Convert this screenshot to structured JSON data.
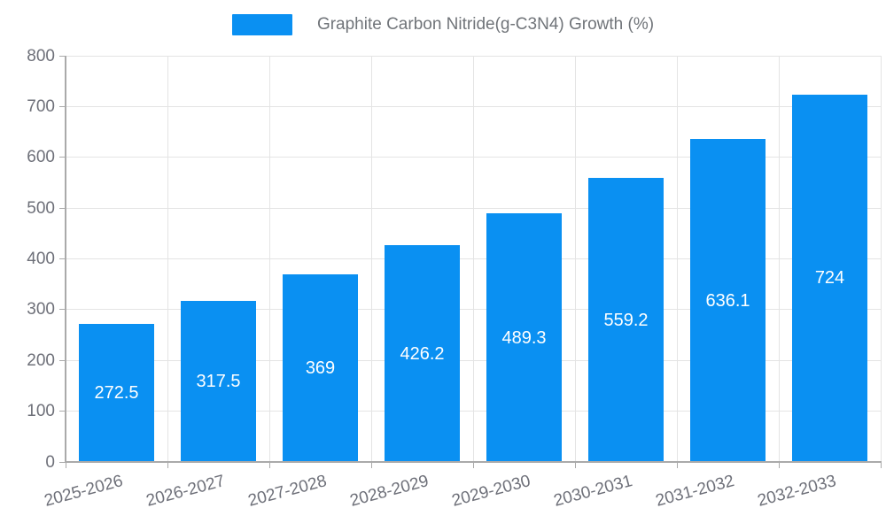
{
  "legend": {
    "label": "Graphite Carbon Nitride(g-C3N4) Growth (%)"
  },
  "chart_data": {
    "type": "bar",
    "title": "Graphite Carbon Nitride(g-C3N4) Growth (%)",
    "series_name": "Graphite Carbon Nitride(g-C3N4) Growth (%)",
    "categories": [
      "2025-2026",
      "2026-2027",
      "2027-2028",
      "2028-2029",
      "2029-2030",
      "2030-2031",
      "2031-2032",
      "2032-2033"
    ],
    "values": [
      272.5,
      317.5,
      369,
      426.2,
      489.3,
      559.2,
      636.1,
      724
    ],
    "value_labels": [
      "272.5",
      "317.5",
      "369",
      "426.2",
      "489.3",
      "559.2",
      "636.1",
      "724"
    ],
    "xlabel": "",
    "ylabel": "",
    "ylim": [
      0,
      800
    ],
    "ytick_step": 100,
    "yticks": [
      0,
      100,
      200,
      300,
      400,
      500,
      600,
      700,
      800
    ],
    "grid": true,
    "legend_position": "top-center",
    "x_label_rotation_deg": -15,
    "colors": {
      "bar": "#0a90f2",
      "value_label": "#ffffff",
      "axis_text": "#6e7079",
      "legend_text": "#707479",
      "grid_line": "#e4e4e4",
      "axis_line": "#aaaaaa"
    }
  }
}
